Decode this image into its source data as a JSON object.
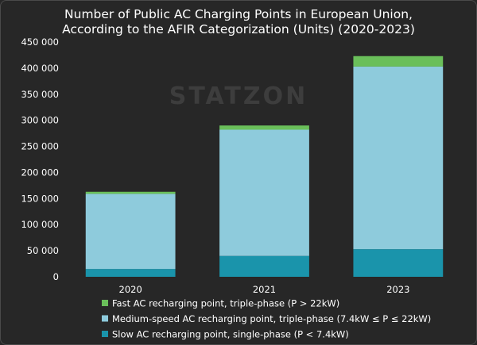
{
  "chart_data": {
    "type": "bar",
    "stacked": true,
    "title": [
      "Number of Public AC Charging Points in European Union,",
      "According to the AFIR Categorization (Units) (2020-2023)"
    ],
    "xlabel": "",
    "ylabel": "",
    "categories": [
      "2020",
      "2021",
      "2023"
    ],
    "ylim": [
      0,
      450000
    ],
    "yticks": [
      0,
      50000,
      100000,
      150000,
      200000,
      250000,
      300000,
      350000,
      400000,
      450000
    ],
    "ytick_labels": [
      "0",
      "50 000",
      "100 000",
      "150 000",
      "200 000",
      "250 000",
      "300 000",
      "350 000",
      "400 000",
      "450 000"
    ],
    "grid": false,
    "legend_position": "bottom",
    "series": [
      {
        "name": "Slow AC recharging point, single-phase (P < 7.4kW)",
        "values": [
          15000,
          40000,
          53000
        ],
        "color": "#1a94ab"
      },
      {
        "name": "Medium-speed AC recharging point, triple-phase (7.4kW ≤ P ≤ 22kW)",
        "values": [
          144000,
          242000,
          350000
        ],
        "color": "#8ecbdc"
      },
      {
        "name": "Fast AC recharging point, triple-phase (P > 22kW)",
        "values": [
          4000,
          8000,
          20000
        ],
        "color": "#6abf5a"
      }
    ],
    "legend_order": [
      2,
      1,
      0
    ]
  },
  "watermark": "STATZON"
}
